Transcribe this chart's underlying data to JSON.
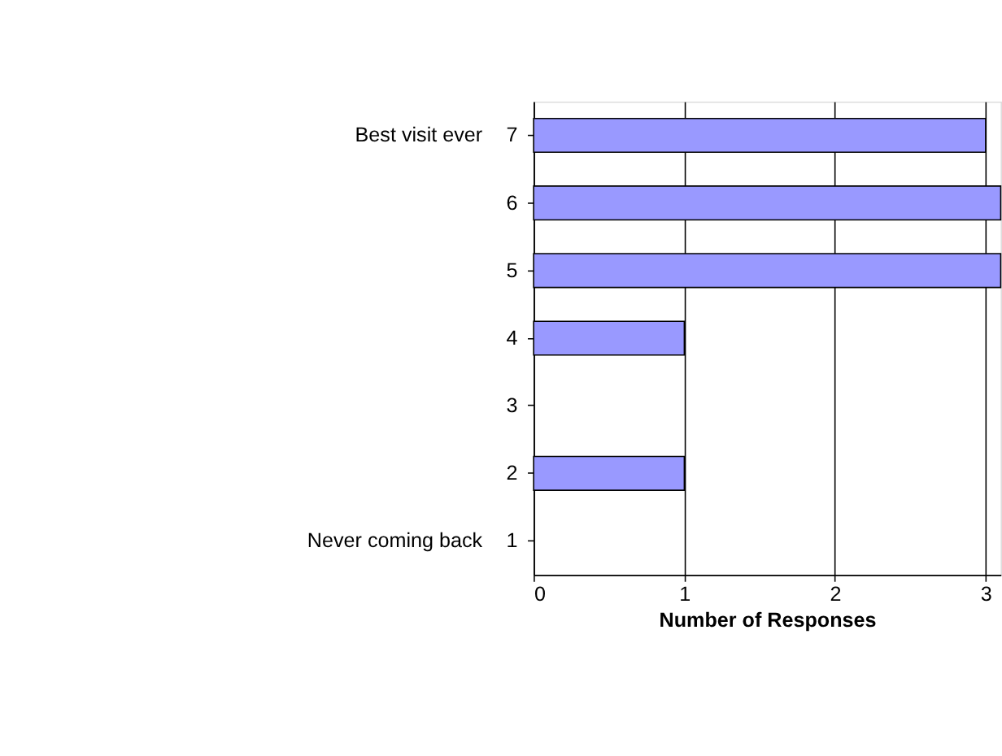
{
  "chart_data": {
    "type": "bar",
    "orientation": "horizontal",
    "xlabel": "Number of Responses",
    "categories": [
      "7",
      "6",
      "5",
      "4",
      "3",
      "2",
      "1"
    ],
    "values": [
      3,
      3.1,
      3.1,
      1,
      0,
      1,
      0
    ],
    "color": "#9999ff",
    "xlim": [
      0,
      3.1
    ],
    "xticks": [
      0,
      1,
      2,
      3
    ],
    "grid": "x",
    "annotations": [
      "Best visit ever",
      "Never coming back"
    ]
  }
}
